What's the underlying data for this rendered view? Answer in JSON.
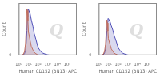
{
  "chart_data": [
    {
      "type": "area",
      "x_label": "Human CD152 (BN13) APC",
      "y_label": "Count",
      "annotations": [
        {
          "text": "Q",
          "color": "#d0d0d0"
        }
      ],
      "x": [
        1,
        2,
        3,
        4,
        5,
        6,
        7,
        8,
        9,
        10,
        15,
        20,
        30,
        40,
        60,
        80,
        100,
        150,
        200,
        300,
        500,
        700,
        1000,
        1500,
        2000,
        3000,
        5000,
        7000,
        10000,
        15000,
        20000,
        30000,
        50000,
        70000,
        100000,
        150000,
        200000,
        300000,
        500000,
        700000,
        1000000
      ],
      "series": [
        {
          "color": "#c07060",
          "values": [
            0,
            2,
            8,
            30,
            90,
            220,
            370,
            360,
            280,
            190,
            120,
            72,
            42,
            24,
            13,
            7,
            3,
            1,
            0,
            0,
            0,
            0,
            0,
            0,
            0,
            0,
            0,
            0,
            0,
            0,
            0,
            0,
            0,
            0,
            0,
            0,
            0,
            0,
            0,
            0,
            0
          ]
        },
        {
          "color": "#5050b8",
          "values": [
            0,
            1,
            4,
            14,
            40,
            100,
            200,
            310,
            370,
            370,
            335,
            285,
            230,
            175,
            128,
            90,
            62,
            42,
            28,
            18,
            11,
            7,
            4,
            2,
            1,
            0,
            0,
            0,
            0,
            0,
            0,
            0,
            0,
            0,
            0,
            0,
            0,
            0,
            0,
            0,
            0
          ]
        }
      ],
      "log": "x",
      "xlim": [
        1,
        1000000
      ],
      "xticks": [
        {
          "value": 1,
          "label": "10⁰"
        },
        {
          "value": 10,
          "label": "10¹"
        },
        {
          "value": 100,
          "label": "10²"
        },
        {
          "value": 1000,
          "label": "10³"
        },
        {
          "value": 10000,
          "label": "10⁴"
        },
        {
          "value": 100000,
          "label": "10⁵"
        }
      ],
      "ylim": [
        0,
        420
      ],
      "yticks": [
        0
      ],
      "grid": false,
      "legend": false
    },
    {
      "type": "area",
      "x_label": "Human CD152 (BN13) APC",
      "y_label": "Count",
      "annotations": [
        {
          "text": "Q",
          "color": "#d0d0d0"
        }
      ],
      "x": [
        1,
        2,
        3,
        4,
        5,
        6,
        7,
        8,
        9,
        10,
        15,
        20,
        30,
        40,
        60,
        80,
        100,
        150,
        200,
        300,
        500,
        700,
        1000,
        1500,
        2000,
        3000,
        5000,
        7000,
        10000,
        15000,
        20000,
        30000,
        50000,
        70000,
        100000,
        150000,
        200000,
        300000,
        500000,
        700000,
        1000000
      ],
      "series": [
        {
          "color": "#c07060",
          "values": [
            0,
            2,
            9,
            32,
            85,
            190,
            285,
            260,
            195,
            135,
            85,
            52,
            30,
            17,
            9,
            5,
            2,
            1,
            0,
            0,
            0,
            0,
            0,
            0,
            0,
            0,
            0,
            0,
            0,
            0,
            0,
            0,
            0,
            0,
            0,
            0,
            0,
            0,
            0,
            0,
            0
          ]
        },
        {
          "color": "#5050b8",
          "values": [
            0,
            1,
            5,
            18,
            50,
            115,
            200,
            265,
            295,
            295,
            270,
            238,
            198,
            158,
            120,
            88,
            62,
            42,
            28,
            17,
            10,
            6,
            3,
            1,
            0,
            0,
            0,
            0,
            0,
            0,
            0,
            0,
            0,
            0,
            0,
            0,
            0,
            0,
            0,
            0,
            0
          ]
        }
      ],
      "log": "x",
      "xlim": [
        1,
        1000000
      ],
      "xticks": [
        {
          "value": 1,
          "label": "10⁰"
        },
        {
          "value": 10,
          "label": "10¹"
        },
        {
          "value": 100,
          "label": "10²"
        },
        {
          "value": 1000,
          "label": "10³"
        },
        {
          "value": 10000,
          "label": "10⁴"
        },
        {
          "value": 100000,
          "label": "10⁵"
        }
      ],
      "ylim": [
        0,
        420
      ],
      "yticks": [
        0
      ],
      "grid": false,
      "legend": false
    }
  ]
}
